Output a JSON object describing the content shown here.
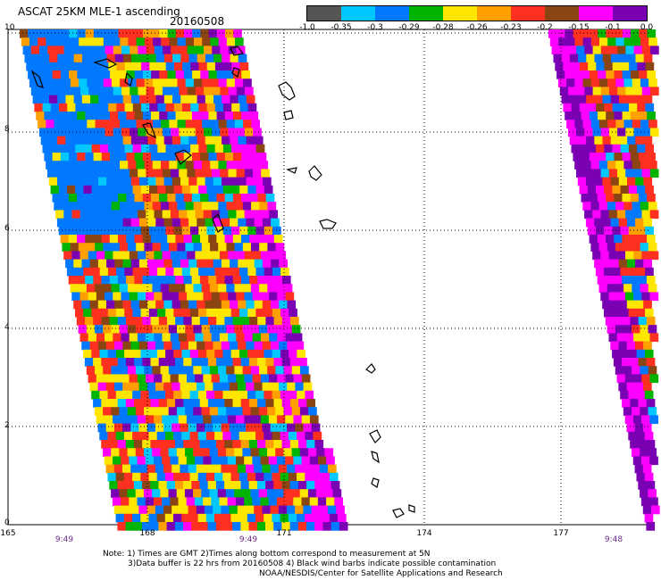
{
  "title": "ASCAT 25KM MLE-1 ascending",
  "date": "20160508",
  "legend": {
    "colors": [
      "#555555",
      "#00c8ff",
      "#0078ff",
      "#00b400",
      "#ffe600",
      "#ffa000",
      "#ff3020",
      "#8b4513",
      "#ff00ff",
      "#7a00b4"
    ],
    "ticks": [
      "-1.0",
      "-0.35",
      "-0.3",
      "-0.29",
      "-0.28",
      "-0.26",
      "-0.23",
      "-0.2",
      "-0.15",
      "-0.1",
      "0.0"
    ]
  },
  "map": {
    "lat_ticks": [
      "10",
      "8",
      "6",
      "4",
      "2",
      "0"
    ],
    "lon_ticks": [
      "165",
      "168",
      "171",
      "174",
      "177"
    ],
    "time_labels": [
      "9:49",
      "9:49",
      "9:48"
    ]
  },
  "notes": {
    "line1": "Note: 1) Times are GMT 2)Times along bottom correspond to measurement at 5N",
    "line2": "3)Data buffer is 22 hrs from 20160508 4) Black wind barbs indicate possible contamination",
    "line3": "NOAA/NESDIS/Center for Satellite Applications and Research"
  }
}
